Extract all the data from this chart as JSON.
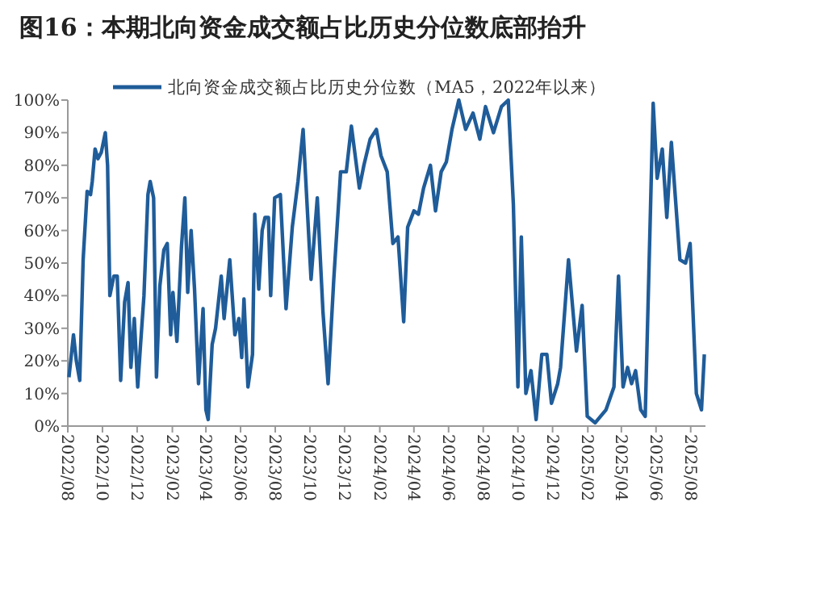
{
  "chart_data": {
    "type": "line",
    "title": "图16：本期北向资金成交额占比历史分位数底部抬升",
    "xlim": [
      "2022-08-01",
      "2025-08-27"
    ],
    "xticks": [
      {
        "value": "2022-08-01",
        "label": "2022/08"
      },
      {
        "value": "2022-10-01",
        "label": "2022/10"
      },
      {
        "value": "2022-12-01",
        "label": "2022/12"
      },
      {
        "value": "2023-02-01",
        "label": "2023/02"
      },
      {
        "value": "2023-04-01",
        "label": "2023/04"
      },
      {
        "value": "2023-06-01",
        "label": "2023/06"
      },
      {
        "value": "2023-08-01",
        "label": "2023/08"
      },
      {
        "value": "2023-10-01",
        "label": "2023/10"
      },
      {
        "value": "2023-12-01",
        "label": "2023/12"
      },
      {
        "value": "2024-02-01",
        "label": "2024/02"
      },
      {
        "value": "2024-04-01",
        "label": "2024/04"
      },
      {
        "value": "2024-06-01",
        "label": "2024/06"
      },
      {
        "value": "2024-08-01",
        "label": "2024/08"
      },
      {
        "value": "2024-10-01",
        "label": "2024/10"
      },
      {
        "value": "2024-12-01",
        "label": "2024/12"
      },
      {
        "value": "2025-02-01",
        "label": "2025/02"
      },
      {
        "value": "2025-04-01",
        "label": "2025/04"
      },
      {
        "value": "2025-06-01",
        "label": "2025/06"
      },
      {
        "value": "2025-08-01",
        "label": "2025/08"
      }
    ],
    "ylim": [
      0,
      100
    ],
    "yticks": [
      {
        "value": 0,
        "label": "0%"
      },
      {
        "value": 10,
        "label": "10%"
      },
      {
        "value": 20,
        "label": "20%"
      },
      {
        "value": 30,
        "label": "30%"
      },
      {
        "value": 40,
        "label": "40%"
      },
      {
        "value": 50,
        "label": "50%"
      },
      {
        "value": 60,
        "label": "60%"
      },
      {
        "value": 70,
        "label": "70%"
      },
      {
        "value": 80,
        "label": "80%"
      },
      {
        "value": 90,
        "label": "90%"
      },
      {
        "value": 100,
        "label": "100%"
      }
    ],
    "grid": false,
    "legend": "top",
    "marker": "none",
    "line_style": "solid",
    "x": [
      "2022-08-03",
      "2022-08-11",
      "2022-08-16",
      "2022-08-22",
      "2022-08-28",
      "2022-09-04",
      "2022-09-10",
      "2022-09-13",
      "2022-09-18",
      "2022-09-23",
      "2022-09-29",
      "2022-10-06",
      "2022-10-10",
      "2022-10-14",
      "2022-10-21",
      "2022-10-27",
      "2022-11-02",
      "2022-11-09",
      "2022-11-15",
      "2022-11-20",
      "2022-11-26",
      "2022-12-02",
      "2022-12-07",
      "2022-12-13",
      "2022-12-20",
      "2022-12-24",
      "2022-12-30",
      "2023-01-04",
      "2023-01-10",
      "2023-01-17",
      "2023-01-23",
      "2023-01-29",
      "2023-02-02",
      "2023-02-09",
      "2023-02-17",
      "2023-02-23",
      "2023-02-28",
      "2023-03-06",
      "2023-03-12",
      "2023-03-19",
      "2023-03-27",
      "2023-04-01",
      "2023-04-05",
      "2023-04-12",
      "2023-04-18",
      "2023-04-28",
      "2023-05-03",
      "2023-05-13",
      "2023-05-22",
      "2023-05-29",
      "2023-06-03",
      "2023-06-07",
      "2023-06-14",
      "2023-06-22",
      "2023-06-26",
      "2023-07-03",
      "2023-07-09",
      "2023-07-14",
      "2023-07-20",
      "2023-07-24",
      "2023-07-31",
      "2023-08-10",
      "2023-08-20",
      "2023-08-31",
      "2023-09-10",
      "2023-09-19",
      "2023-10-03",
      "2023-10-14",
      "2023-10-24",
      "2023-11-02",
      "2023-11-12",
      "2023-11-24",
      "2023-12-04",
      "2023-12-13",
      "2023-12-27",
      "2024-01-04",
      "2024-01-15",
      "2024-01-26",
      "2024-02-03",
      "2024-02-14",
      "2024-02-24",
      "2024-03-04",
      "2024-03-14",
      "2024-03-21",
      "2024-04-01",
      "2024-04-09",
      "2024-04-18",
      "2024-04-30",
      "2024-05-09",
      "2024-05-19",
      "2024-05-28",
      "2024-06-07",
      "2024-06-19",
      "2024-07-01",
      "2024-07-14",
      "2024-07-26",
      "2024-08-05",
      "2024-08-19",
      "2024-09-02",
      "2024-09-14",
      "2024-09-23",
      "2024-10-01",
      "2024-10-07",
      "2024-10-15",
      "2024-10-24",
      "2024-11-02",
      "2024-11-12",
      "2024-11-21",
      "2024-11-29",
      "2024-12-10",
      "2024-12-15",
      "2024-12-29",
      "2025-01-12",
      "2025-01-22",
      "2025-01-31",
      "2025-02-14",
      "2025-03-05",
      "2025-03-19",
      "2025-03-27",
      "2025-04-04",
      "2025-04-12",
      "2025-04-19",
      "2025-04-26",
      "2025-05-05",
      "2025-05-13",
      "2025-05-27",
      "2025-06-03",
      "2025-06-12",
      "2025-06-20",
      "2025-06-28",
      "2025-07-13",
      "2025-07-23",
      "2025-07-31",
      "2025-08-11",
      "2025-08-20",
      "2025-08-25"
    ],
    "series": [
      {
        "name": "北向资金成交额占比历史分位数（MA5，2022年以来）",
        "color": "#1f5c99",
        "values": [
          15,
          28,
          20,
          14,
          51,
          72,
          71,
          75,
          85,
          82,
          84,
          90,
          80,
          40,
          46,
          46,
          14,
          38,
          44,
          18,
          33,
          12,
          25,
          40,
          71,
          75,
          70,
          15,
          43,
          54,
          56,
          28,
          41,
          26,
          55,
          70,
          41,
          60,
          42,
          13,
          36,
          5,
          2,
          25,
          30,
          46,
          33,
          51,
          28,
          33,
          21,
          39,
          12,
          22,
          65,
          42,
          60,
          64,
          64,
          40,
          70,
          71,
          36,
          61,
          75,
          91,
          45,
          70,
          35,
          13,
          45,
          78,
          78,
          92,
          73,
          80,
          88,
          91,
          83,
          78,
          56,
          58,
          32,
          61,
          66,
          65,
          73,
          80,
          66,
          78,
          81,
          91,
          100,
          91,
          96,
          88,
          98,
          90,
          98,
          100,
          68,
          12,
          58,
          10,
          17,
          2,
          22,
          22,
          7,
          13,
          18,
          51,
          23,
          37,
          3,
          1,
          5,
          12,
          46,
          12,
          18,
          13,
          17,
          5,
          3,
          99,
          76,
          85,
          64,
          87,
          51,
          50,
          56,
          10,
          5,
          22
        ]
      }
    ]
  }
}
